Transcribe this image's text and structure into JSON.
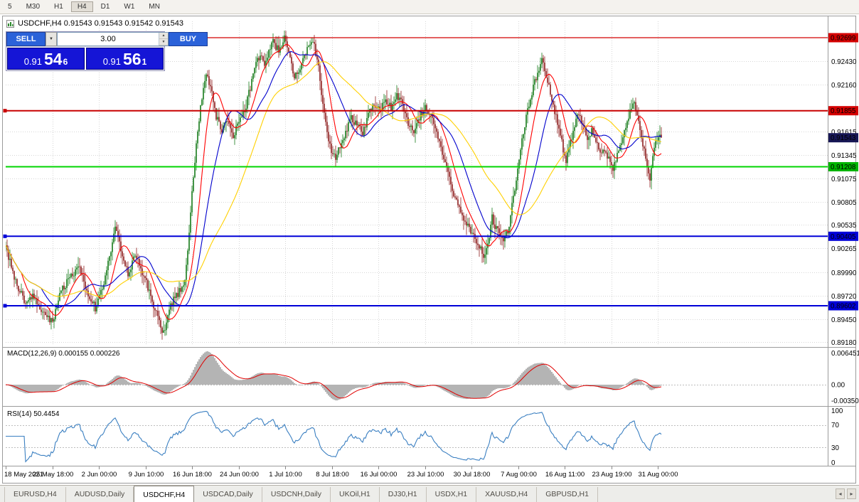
{
  "toolbar": {
    "timeframes": [
      {
        "label": "5",
        "active": false
      },
      {
        "label": "M30",
        "active": false
      },
      {
        "label": "H1",
        "active": false
      },
      {
        "label": "H4",
        "active": true
      },
      {
        "label": "D1",
        "active": false
      },
      {
        "label": "W1",
        "active": false
      },
      {
        "label": "MN",
        "active": false
      }
    ]
  },
  "chart_header": {
    "title": "USDCHF,H4  0.91543 0.91543 0.91542 0.91543"
  },
  "trade_panel": {
    "sell_label": "SELL",
    "buy_label": "BUY",
    "lot_value": "3.00",
    "sell_price": {
      "base": "0.91",
      "big": "54",
      "sup": "6"
    },
    "buy_price": {
      "base": "0.91",
      "big": "56",
      "sup": "1"
    }
  },
  "icons": {
    "chevron_down": "▼",
    "spin_up": "▲",
    "spin_down": "▼",
    "scroll_left": "◂",
    "scroll_right": "▸"
  },
  "indicators": {
    "macd": {
      "label": "MACD(12,26,9) 0.000155 0.000226",
      "axis_top": "0.006451",
      "axis_zero": "0.00",
      "axis_bottom": "-0.00350"
    },
    "rsi": {
      "label": "RSI(14) 50.4454",
      "axis": [
        "100",
        "70",
        "30",
        "0"
      ]
    }
  },
  "price_axis": {
    "grid_labels": [
      "0.92430",
      "0.92160",
      "0.91615",
      "0.91345",
      "0.91075",
      "0.90805",
      "0.90535",
      "0.90265",
      "0.89990",
      "0.89720",
      "0.89450",
      "0.89180"
    ],
    "badges": [
      {
        "value": "0.92699",
        "color": "#d40000"
      },
      {
        "value": "0.91855",
        "color": "#d40000"
      },
      {
        "value": "0.91543",
        "color": "#161654"
      },
      {
        "value": "0.91208",
        "color": "#00b400"
      },
      {
        "value": "0.90405",
        "color": "#0000d8"
      },
      {
        "value": "0.89602",
        "color": "#0000d8"
      }
    ]
  },
  "time_axis": [
    "18 May 2021",
    "25 May 18:00",
    "2 Jun 00:00",
    "9 Jun 10:00",
    "16 Jun 18:00",
    "24 Jun 00:00",
    "1 Jul 10:00",
    "8 Jul 18:00",
    "16 Jul 00:00",
    "23 Jul 10:00",
    "30 Jul 18:00",
    "7 Aug 00:00",
    "16 Aug 11:00",
    "23 Aug 19:00",
    "31 Aug 00:00"
  ],
  "tabs": {
    "items": [
      "EURUSD,H4",
      "AUDUSD,Daily",
      "USDCHF,H4",
      "USDCAD,Daily",
      "USDCNH,Daily",
      "UKOil,H1",
      "DJ30,H1",
      "USDX,H1",
      "XAUUSD,H4",
      "GBPUSD,H1"
    ],
    "active_index": 2
  },
  "chart_data": {
    "type": "candlestick",
    "symbol": "USDCHF",
    "timeframe": "H4",
    "bars": 462,
    "noise_seed": 20210831,
    "noise_amplitude": 0.00045,
    "wick_amplitude": 0.0011,
    "price_range": [
      0.89142,
      0.92888
    ],
    "grid_prices": [
      0.9243,
      0.9216,
      0.91615,
      0.91345,
      0.91075,
      0.90805,
      0.90535,
      0.90265,
      0.8999,
      0.8972,
      0.8945,
      0.8918
    ],
    "hlines": [
      {
        "price": 0.92699,
        "color": "#d40000",
        "width": 1.2,
        "edge_marker": false
      },
      {
        "price": 0.91855,
        "color": "#c80000",
        "width": 2,
        "edge_marker": true
      },
      {
        "price": 0.91208,
        "color": "#00d400",
        "width": 2,
        "edge_marker": false
      },
      {
        "price": 0.90405,
        "color": "#0000d8",
        "width": 2,
        "edge_marker": true
      },
      {
        "price": 0.89602,
        "color": "#0000d8",
        "width": 2,
        "edge_marker": true
      }
    ],
    "current_price": 0.91543,
    "candle_up_color": "#157a19",
    "candle_down_color": "#8d1d1d",
    "ma": [
      {
        "period": 12,
        "color": "#ff0000"
      },
      {
        "period": 26,
        "color": "#0000cd"
      },
      {
        "period": 56,
        "color": "#ffd000"
      }
    ],
    "macd_params": [
      12,
      26,
      9
    ],
    "macd_values": [
      0.000155,
      0.000226
    ],
    "rsi_period": 14,
    "rsi_value": 50.4454,
    "price_path": [
      [
        0,
        0.9028
      ],
      [
        6,
        0.8992
      ],
      [
        14,
        0.8963
      ],
      [
        20,
        0.8972
      ],
      [
        24,
        0.8955
      ],
      [
        28,
        0.8948
      ],
      [
        33,
        0.8942
      ],
      [
        38,
        0.8976
      ],
      [
        45,
        0.8992
      ],
      [
        52,
        0.9003
      ],
      [
        58,
        0.8972
      ],
      [
        63,
        0.8958
      ],
      [
        68,
        0.8982
      ],
      [
        73,
        0.9016
      ],
      [
        77,
        0.9048
      ],
      [
        82,
        0.902
      ],
      [
        86,
        0.8998
      ],
      [
        91,
        0.9018
      ],
      [
        97,
        0.8996
      ],
      [
        102,
        0.897
      ],
      [
        107,
        0.8946
      ],
      [
        111,
        0.8928
      ],
      [
        116,
        0.8962
      ],
      [
        121,
        0.8973
      ],
      [
        126,
        0.8992
      ],
      [
        129,
        0.9045
      ],
      [
        132,
        0.911
      ],
      [
        135,
        0.9165
      ],
      [
        138,
        0.92
      ],
      [
        141,
        0.9228
      ],
      [
        145,
        0.9206
      ],
      [
        148,
        0.9178
      ],
      [
        152,
        0.9162
      ],
      [
        156,
        0.9176
      ],
      [
        160,
        0.9158
      ],
      [
        164,
        0.917
      ],
      [
        168,
        0.9186
      ],
      [
        172,
        0.9212
      ],
      [
        176,
        0.924
      ],
      [
        179,
        0.9252
      ],
      [
        182,
        0.9238
      ],
      [
        185,
        0.9252
      ],
      [
        188,
        0.9264
      ],
      [
        192,
        0.9256
      ],
      [
        196,
        0.927
      ],
      [
        199,
        0.9255
      ],
      [
        203,
        0.9222
      ],
      [
        207,
        0.9236
      ],
      [
        211,
        0.9254
      ],
      [
        214,
        0.9264
      ],
      [
        217,
        0.926
      ],
      [
        220,
        0.9234
      ],
      [
        223,
        0.919
      ],
      [
        226,
        0.916
      ],
      [
        229,
        0.914
      ],
      [
        232,
        0.9133
      ],
      [
        235,
        0.9143
      ],
      [
        239,
        0.9161
      ],
      [
        243,
        0.9178
      ],
      [
        247,
        0.9169
      ],
      [
        251,
        0.9158
      ],
      [
        255,
        0.9181
      ],
      [
        259,
        0.9192
      ],
      [
        263,
        0.9185
      ],
      [
        267,
        0.92
      ],
      [
        271,
        0.9188
      ],
      [
        275,
        0.9204
      ],
      [
        279,
        0.9194
      ],
      [
        283,
        0.917
      ],
      [
        287,
        0.9161
      ],
      [
        291,
        0.9178
      ],
      [
        295,
        0.9188
      ],
      [
        299,
        0.9181
      ],
      [
        303,
        0.916
      ],
      [
        307,
        0.9138
      ],
      [
        311,
        0.9112
      ],
      [
        315,
        0.909
      ],
      [
        319,
        0.9072
      ],
      [
        323,
        0.9056
      ],
      [
        326,
        0.9048
      ],
      [
        329,
        0.9041
      ],
      [
        332,
        0.9031
      ],
      [
        335,
        0.9022
      ],
      [
        337,
        0.9018
      ],
      [
        339,
        0.9033
      ],
      [
        342,
        0.9062
      ],
      [
        345,
        0.9048
      ],
      [
        348,
        0.9041
      ],
      [
        351,
        0.9038
      ],
      [
        354,
        0.9053
      ],
      [
        357,
        0.9086
      ],
      [
        360,
        0.9118
      ],
      [
        363,
        0.9152
      ],
      [
        366,
        0.9178
      ],
      [
        369,
        0.92
      ],
      [
        372,
        0.9219
      ],
      [
        375,
        0.9236
      ],
      [
        377,
        0.9243
      ],
      [
        380,
        0.9228
      ],
      [
        383,
        0.9206
      ],
      [
        386,
        0.9186
      ],
      [
        389,
        0.9163
      ],
      [
        392,
        0.9141
      ],
      [
        394,
        0.9128
      ],
      [
        397,
        0.9149
      ],
      [
        400,
        0.9168
      ],
      [
        403,
        0.9182
      ],
      [
        406,
        0.9171
      ],
      [
        409,
        0.9156
      ],
      [
        412,
        0.9163
      ],
      [
        415,
        0.9149
      ],
      [
        418,
        0.9136
      ],
      [
        421,
        0.9143
      ],
      [
        424,
        0.913
      ],
      [
        427,
        0.9118
      ],
      [
        430,
        0.9136
      ],
      [
        433,
        0.9152
      ],
      [
        436,
        0.9168
      ],
      [
        439,
        0.9184
      ],
      [
        442,
        0.9194
      ],
      [
        445,
        0.9172
      ],
      [
        448,
        0.9146
      ],
      [
        451,
        0.9121
      ],
      [
        453,
        0.9108
      ],
      [
        455,
        0.9133
      ],
      [
        457,
        0.9149
      ],
      [
        459,
        0.9157
      ],
      [
        461,
        0.91543
      ]
    ]
  }
}
